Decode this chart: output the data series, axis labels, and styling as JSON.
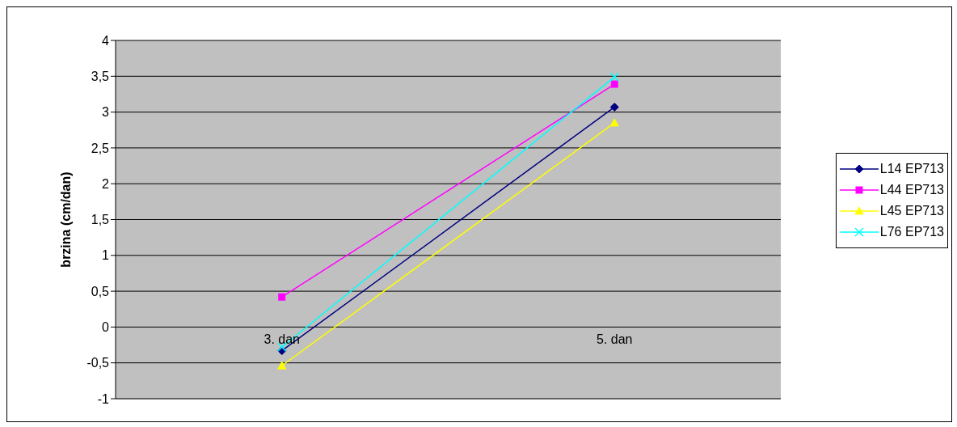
{
  "chart_data": {
    "type": "line",
    "ylabel": "brzina (cm/dan)",
    "categories": [
      "3. dan",
      "5. dan"
    ],
    "series": [
      {
        "name": "L14 EP713",
        "color": "#000080",
        "marker": "diamond",
        "values": [
          -0.33,
          3.07
        ]
      },
      {
        "name": "L44 EP713",
        "color": "#ff00ff",
        "marker": "square",
        "values": [
          0.42,
          3.39
        ]
      },
      {
        "name": "L45 EP713",
        "color": "#ffff00",
        "marker": "triangle",
        "values": [
          -0.54,
          2.85
        ]
      },
      {
        "name": "L76 EP713",
        "color": "#00ffff",
        "marker": "cross",
        "values": [
          -0.28,
          3.49
        ]
      }
    ],
    "ylim": [
      -1,
      4
    ],
    "yticks": [
      -1,
      {
        "value": -0.5,
        "label": "-0,5"
      },
      0,
      {
        "value": 0.5,
        "label": "0,5"
      },
      1,
      {
        "value": 1.5,
        "label": "1,5"
      },
      2,
      {
        "value": 2.5,
        "label": "2,5"
      },
      3,
      {
        "value": 3.5,
        "label": "3,5"
      },
      4
    ],
    "grid": "y",
    "legend": "right"
  }
}
